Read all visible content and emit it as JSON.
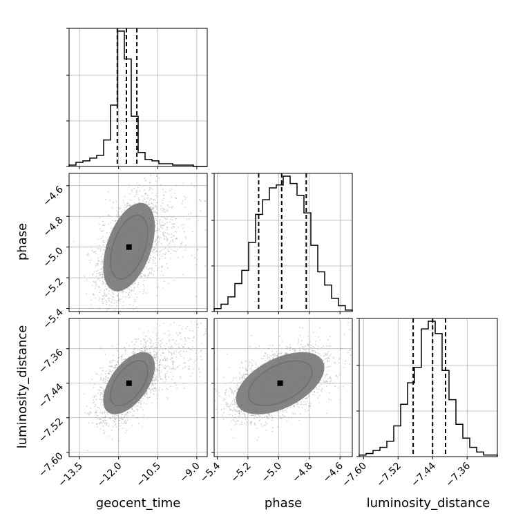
{
  "chart_data": {
    "type": "corner",
    "parameters": [
      "geocent_time",
      "phase",
      "luminosity_distance"
    ],
    "axes": {
      "geocent_time": {
        "label": "geocent_time",
        "lim": [
          -13.9,
          -8.6
        ],
        "ticks": [
          -13.5,
          -12.0,
          -10.5,
          -9.0
        ],
        "tick_labels": [
          "−13.5",
          "−12.0",
          "−10.5",
          "−9.0"
        ]
      },
      "phase": {
        "label": "phase",
        "lim": [
          -5.42,
          -4.52
        ],
        "ticks": [
          -5.4,
          -5.2,
          -5.0,
          -4.8,
          -4.6
        ],
        "tick_labels": [
          "−5.4",
          "−5.2",
          "−5.0",
          "−4.8",
          "−4.6"
        ]
      },
      "luminosity_distance": {
        "label": "luminosity_distance",
        "lim": [
          -7.61,
          -7.29
        ],
        "ticks": [
          -7.6,
          -7.52,
          -7.44,
          -7.36
        ],
        "tick_labels": [
          "−7.60",
          "−7.52",
          "−7.44",
          "−7.36"
        ]
      }
    },
    "histograms": [
      {
        "parameter": "geocent_time",
        "counts": [
          0.01,
          0.03,
          0.04,
          0.06,
          0.08,
          0.19,
          0.44,
          0.97,
          0.77,
          0.36,
          0.1,
          0.05,
          0.04,
          0.02,
          0.02,
          0.01,
          0.01,
          0.01,
          0.0,
          0.0
        ],
        "quantiles": [
          -12.05,
          -11.7,
          -11.3
        ]
      },
      {
        "parameter": "phase",
        "counts": [
          0.02,
          0.05,
          0.1,
          0.19,
          0.28,
          0.47,
          0.66,
          0.76,
          0.84,
          0.86,
          0.92,
          0.87,
          0.79,
          0.67,
          0.45,
          0.27,
          0.18,
          0.09,
          0.04,
          0.01
        ],
        "quantiles": [
          -5.13,
          -4.98,
          -4.82
        ]
      },
      {
        "parameter": "luminosity_distance",
        "counts": [
          0.01,
          0.02,
          0.04,
          0.06,
          0.1,
          0.2,
          0.34,
          0.48,
          0.58,
          0.83,
          0.88,
          0.8,
          0.56,
          0.37,
          0.21,
          0.12,
          0.06,
          0.03,
          0.01,
          0.01
        ],
        "quantiles": [
          -7.485,
          -7.44,
          -7.41
        ]
      }
    ],
    "joint": [
      {
        "x": "geocent_time",
        "y": "phase",
        "mean": [
          -11.6,
          -5.0
        ],
        "std": [
          0.55,
          0.16
        ],
        "corr": 0.45,
        "tail_mean": [
          -10.4,
          -4.95
        ],
        "tail_std": [
          1.0,
          0.18
        ],
        "tail_fraction": 0.12
      },
      {
        "x": "geocent_time",
        "y": "luminosity_distance",
        "mean": [
          -11.6,
          -7.44
        ],
        "std": [
          0.55,
          0.04
        ],
        "corr": 0.55,
        "tail_mean": [
          -10.2,
          -7.38
        ],
        "tail_std": [
          1.0,
          0.05
        ],
        "tail_fraction": 0.12
      },
      {
        "x": "phase",
        "y": "luminosity_distance",
        "mean": [
          -4.99,
          -7.44
        ],
        "std": [
          0.16,
          0.04
        ],
        "corr": 0.5
      }
    ],
    "contour_levels": [
      0.5,
      1.0,
      1.5,
      2.0
    ],
    "grid": true,
    "legend": "none"
  }
}
